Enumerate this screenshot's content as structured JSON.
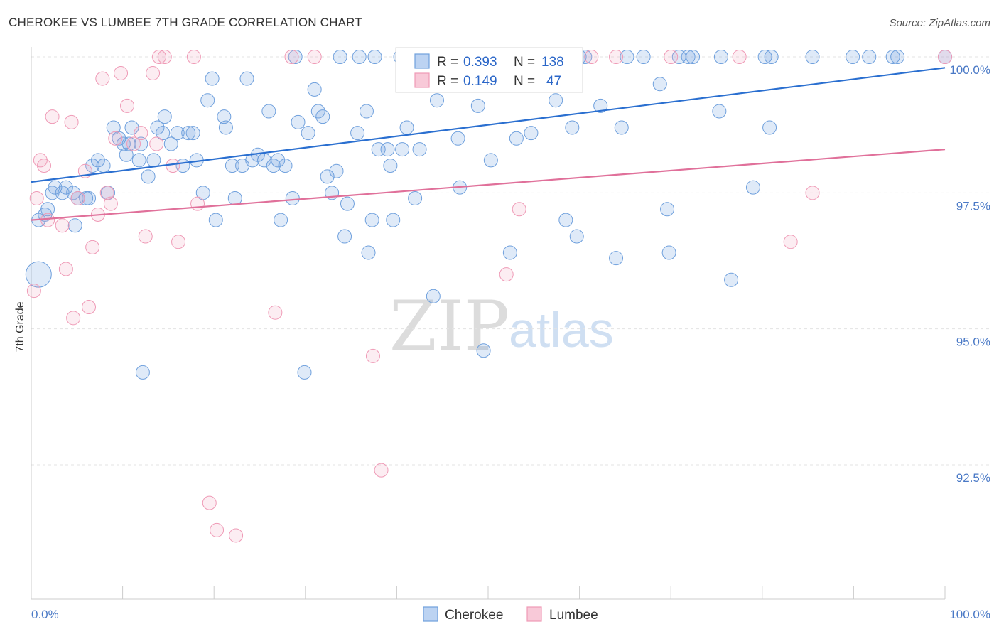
{
  "title": "CHEROKEE VS LUMBEE 7TH GRADE CORRELATION CHART",
  "source": "Source: ZipAtlas.com",
  "watermark": {
    "zip": "ZIP",
    "atlas": "atlas"
  },
  "colors": {
    "cherokee": "#6fa0dd",
    "lumbee": "#ef9ab6",
    "cherokee_line": "#2a6fd0",
    "lumbee_line": "#e0709a",
    "tick": "#4a79c6"
  },
  "legend": {
    "rows": [
      {
        "r_label": "R =",
        "r_value": "0.393",
        "n_label": "N =",
        "n_value": "138"
      },
      {
        "r_label": "R =",
        "r_value": "0.149",
        "n_label": "N =",
        "n_value": "47"
      }
    ]
  },
  "chart_data": {
    "type": "scatter",
    "xlabel": "",
    "ylabel": "7th Grade",
    "xlim": [
      0,
      100
    ],
    "ylim": [
      90,
      100.4
    ],
    "x_tick_labels": [
      "0.0%",
      "100.0%"
    ],
    "y_ticks": [
      {
        "value": 100.0,
        "label": "100.0%"
      },
      {
        "value": 97.5,
        "label": "97.5%"
      },
      {
        "value": 95.0,
        "label": "95.0%"
      },
      {
        "value": 92.5,
        "label": "92.5%"
      }
    ],
    "grid": true,
    "legend_position": "top-center",
    "series": [
      {
        "name": "Cherokee",
        "trend": {
          "x": [
            0,
            100
          ],
          "y": [
            97.7,
            99.8
          ]
        },
        "points": [
          [
            0.8,
            97.0
          ],
          [
            0.8,
            96.0
          ],
          [
            1.5,
            97.1
          ],
          [
            1.8,
            97.2
          ],
          [
            2.3,
            97.5
          ],
          [
            2.6,
            97.6
          ],
          [
            3.4,
            97.5
          ],
          [
            3.8,
            97.6
          ],
          [
            4.6,
            97.5
          ],
          [
            4.8,
            96.9
          ],
          [
            5.1,
            97.4
          ],
          [
            6.0,
            97.4
          ],
          [
            6.3,
            97.4
          ],
          [
            6.7,
            98.0
          ],
          [
            7.3,
            98.1
          ],
          [
            7.9,
            98.0
          ],
          [
            8.4,
            97.5
          ],
          [
            9.0,
            98.7
          ],
          [
            9.6,
            98.5
          ],
          [
            10.1,
            98.4
          ],
          [
            10.4,
            98.2
          ],
          [
            10.7,
            98.4
          ],
          [
            11.0,
            98.7
          ],
          [
            11.8,
            98.1
          ],
          [
            12.0,
            98.4
          ],
          [
            12.2,
            94.2
          ],
          [
            12.8,
            97.8
          ],
          [
            13.4,
            98.1
          ],
          [
            13.8,
            98.7
          ],
          [
            14.4,
            98.6
          ],
          [
            14.6,
            98.9
          ],
          [
            15.3,
            98.4
          ],
          [
            16.0,
            98.6
          ],
          [
            16.6,
            98.0
          ],
          [
            17.2,
            98.6
          ],
          [
            17.7,
            98.6
          ],
          [
            18.1,
            98.1
          ],
          [
            18.8,
            97.5
          ],
          [
            19.3,
            99.2
          ],
          [
            19.8,
            99.6
          ],
          [
            20.2,
            97.0
          ],
          [
            21.1,
            98.9
          ],
          [
            21.3,
            98.7
          ],
          [
            22.0,
            98.0
          ],
          [
            22.3,
            97.4
          ],
          [
            23.1,
            98.0
          ],
          [
            23.6,
            99.6
          ],
          [
            24.2,
            98.1
          ],
          [
            24.8,
            98.2
          ],
          [
            25.5,
            98.1
          ],
          [
            26.0,
            99.0
          ],
          [
            26.5,
            98.0
          ],
          [
            27.0,
            98.1
          ],
          [
            27.3,
            97.0
          ],
          [
            27.8,
            98.0
          ],
          [
            28.6,
            97.4
          ],
          [
            28.9,
            100.0
          ],
          [
            29.2,
            98.8
          ],
          [
            29.9,
            94.2
          ],
          [
            30.3,
            98.6
          ],
          [
            31.0,
            99.4
          ],
          [
            31.4,
            99.0
          ],
          [
            31.9,
            98.9
          ],
          [
            32.4,
            97.8
          ],
          [
            32.9,
            97.5
          ],
          [
            33.4,
            97.9
          ],
          [
            33.8,
            100.0
          ],
          [
            34.3,
            96.7
          ],
          [
            34.6,
            97.3
          ],
          [
            35.7,
            98.6
          ],
          [
            35.9,
            100.0
          ],
          [
            36.7,
            99.0
          ],
          [
            36.9,
            96.4
          ],
          [
            37.3,
            97.0
          ],
          [
            37.6,
            100.0
          ],
          [
            38.0,
            98.3
          ],
          [
            39.0,
            98.3
          ],
          [
            39.3,
            98.0
          ],
          [
            39.6,
            97.0
          ],
          [
            40.4,
            100.0
          ],
          [
            40.6,
            98.3
          ],
          [
            41.1,
            98.7
          ],
          [
            42.0,
            97.4
          ],
          [
            42.5,
            98.3
          ],
          [
            44.0,
            95.6
          ],
          [
            44.4,
            99.2
          ],
          [
            46.7,
            98.5
          ],
          [
            46.9,
            97.6
          ],
          [
            48.9,
            99.1
          ],
          [
            49.5,
            94.6
          ],
          [
            50.3,
            98.1
          ],
          [
            52.4,
            96.4
          ],
          [
            53.1,
            98.5
          ],
          [
            54.7,
            98.6
          ],
          [
            57.4,
            99.2
          ],
          [
            58.5,
            97.0
          ],
          [
            59.2,
            98.7
          ],
          [
            59.7,
            96.7
          ],
          [
            60.0,
            100.0
          ],
          [
            60.6,
            100.0
          ],
          [
            62.3,
            99.1
          ],
          [
            64.0,
            96.3
          ],
          [
            64.6,
            98.7
          ],
          [
            65.2,
            100.0
          ],
          [
            67.0,
            100.0
          ],
          [
            68.8,
            99.5
          ],
          [
            69.6,
            97.2
          ],
          [
            69.8,
            96.4
          ],
          [
            70.9,
            100.0
          ],
          [
            71.9,
            100.0
          ],
          [
            72.4,
            100.0
          ],
          [
            75.3,
            99.0
          ],
          [
            75.5,
            100.0
          ],
          [
            76.6,
            95.9
          ],
          [
            79.0,
            97.6
          ],
          [
            80.3,
            100.0
          ],
          [
            80.8,
            98.7
          ],
          [
            81.0,
            100.0
          ],
          [
            85.5,
            100.0
          ],
          [
            89.9,
            100.0
          ],
          [
            91.7,
            100.0
          ],
          [
            94.3,
            100.0
          ],
          [
            94.8,
            100.0
          ],
          [
            100.0,
            100.0
          ]
        ]
      },
      {
        "name": "Lumbee",
        "trend": {
          "x": [
            0,
            100
          ],
          "y": [
            97.0,
            98.3
          ]
        },
        "points": [
          [
            0.3,
            95.7
          ],
          [
            0.6,
            97.4
          ],
          [
            1.0,
            98.1
          ],
          [
            1.4,
            98.0
          ],
          [
            1.8,
            97.0
          ],
          [
            2.3,
            98.9
          ],
          [
            3.4,
            96.9
          ],
          [
            3.8,
            96.1
          ],
          [
            4.4,
            98.8
          ],
          [
            4.6,
            95.2
          ],
          [
            5.1,
            97.4
          ],
          [
            5.9,
            97.9
          ],
          [
            6.3,
            95.4
          ],
          [
            6.7,
            96.5
          ],
          [
            7.3,
            97.1
          ],
          [
            7.8,
            99.6
          ],
          [
            8.3,
            97.5
          ],
          [
            8.7,
            97.3
          ],
          [
            9.2,
            98.5
          ],
          [
            9.8,
            99.7
          ],
          [
            10.5,
            99.1
          ],
          [
            11.2,
            98.4
          ],
          [
            12.0,
            98.6
          ],
          [
            12.5,
            96.7
          ],
          [
            13.3,
            99.7
          ],
          [
            13.7,
            98.4
          ],
          [
            14.0,
            100.0
          ],
          [
            14.6,
            100.0
          ],
          [
            15.5,
            98.0
          ],
          [
            16.1,
            96.6
          ],
          [
            17.8,
            100.0
          ],
          [
            18.2,
            97.3
          ],
          [
            19.5,
            91.8
          ],
          [
            20.3,
            91.3
          ],
          [
            22.4,
            91.2
          ],
          [
            26.7,
            95.3
          ],
          [
            28.5,
            100.0
          ],
          [
            31.0,
            100.0
          ],
          [
            37.4,
            94.5
          ],
          [
            38.3,
            92.4
          ],
          [
            42.1,
            100.0
          ],
          [
            52.0,
            96.0
          ],
          [
            53.4,
            97.2
          ],
          [
            61.3,
            100.0
          ],
          [
            64.0,
            100.0
          ],
          [
            70.0,
            100.0
          ],
          [
            77.5,
            100.0
          ],
          [
            83.1,
            96.6
          ],
          [
            85.5,
            97.5
          ],
          [
            100.0,
            100.0
          ]
        ]
      }
    ]
  },
  "bottom_legend": [
    {
      "label": "Cherokee"
    },
    {
      "label": "Lumbee"
    }
  ]
}
